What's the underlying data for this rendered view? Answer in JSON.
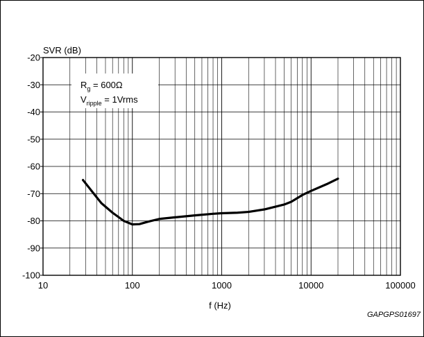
{
  "chart_data": {
    "type": "line",
    "ylabel": "SVR (dB)",
    "xlabel": "f (Hz)",
    "x_scale": "log",
    "xlim": [
      10,
      100000
    ],
    "ylim": [
      -100,
      -20
    ],
    "grid": true,
    "x_ticks": [
      10,
      100,
      1000,
      10000,
      100000
    ],
    "x_tick_labels": [
      "10",
      "100",
      "1000",
      "10000",
      "100000"
    ],
    "y_ticks": [
      -20,
      -30,
      -40,
      -50,
      -60,
      -70,
      -80,
      -90,
      -100
    ],
    "y_tick_labels": [
      "-20",
      "-30",
      "-40",
      "-50",
      "-60",
      "-70",
      "-80",
      "-90",
      "-100"
    ],
    "annotation": {
      "line1_main": "R",
      "line1_sub": "g",
      "line1_rest": " = 600Ω",
      "line2_main": "V",
      "line2_sub": "ripple",
      "line2_rest": " = 1Vrms"
    },
    "series": [
      {
        "x": [
          28,
          35,
          45,
          60,
          80,
          100,
          120,
          150,
          200,
          300,
          500,
          800,
          1000,
          1500,
          2000,
          3000,
          4000,
          5000,
          6000,
          8000,
          10000,
          15000,
          20000
        ],
        "y": [
          -65,
          -69,
          -73.5,
          -77,
          -80,
          -81.3,
          -81.2,
          -80.3,
          -79.3,
          -78.7,
          -78.0,
          -77.4,
          -77.2,
          -77.0,
          -76.7,
          -75.8,
          -74.8,
          -74.0,
          -73.0,
          -70.5,
          -69.0,
          -66.5,
          -64.5
        ]
      }
    ],
    "line_color": "#000000",
    "grid_color": "#000000"
  },
  "figure_code": "GAPGPS01697"
}
